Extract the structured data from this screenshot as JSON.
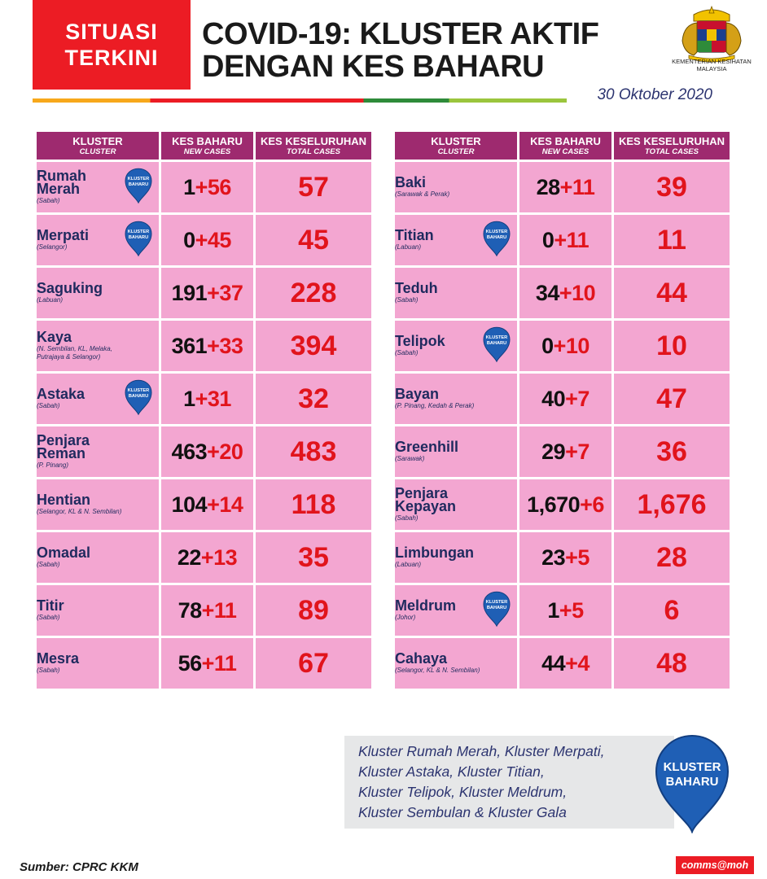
{
  "header": {
    "badge_line1": "SITUASI",
    "badge_line2": "TERKINI",
    "title_line1": "COVID-19: KLUSTER AKTIF",
    "title_line2": "DENGAN KES BAHARU",
    "ministry_line1": "KEMENTERIAN KESIHATAN",
    "ministry_line2": "MALAYSIA",
    "date": "30 Oktober 2020"
  },
  "columns": {
    "cluster": "KLUSTER",
    "cluster_sub": "CLUSTER",
    "new": "KES BAHARU",
    "new_sub": "NEW CASES",
    "total": "KES KESELURUHAN",
    "total_sub": "TOTAL CASES"
  },
  "pin": {
    "line1": "KLUSTER",
    "line2": "BAHARU"
  },
  "left_rows": [
    {
      "name": "Rumah Merah",
      "location": "(Sabah)",
      "prior": "1",
      "plus": "+56",
      "total": "57",
      "new_cluster": true
    },
    {
      "name": "Merpati",
      "location": "(Selangor)",
      "prior": "0",
      "plus": "+45",
      "total": "45",
      "new_cluster": true
    },
    {
      "name": "Saguking",
      "location": "(Labuan)",
      "prior": "191",
      "plus": "+37",
      "total": "228",
      "new_cluster": false
    },
    {
      "name": "Kaya",
      "location": "(N. Sembilan, KL, Melaka, Putrajaya & Selangor)",
      "prior": "361",
      "plus": "+33",
      "total": "394",
      "new_cluster": false
    },
    {
      "name": "Astaka",
      "location": "(Sabah)",
      "prior": "1",
      "plus": "+31",
      "total": "32",
      "new_cluster": true
    },
    {
      "name": "Penjara Reman",
      "location": "(P. Pinang)",
      "prior": "463",
      "plus": "+20",
      "total": "483",
      "new_cluster": false
    },
    {
      "name": "Hentian",
      "location": "(Selangor, KL & N. Sembilan)",
      "prior": "104",
      "plus": "+14",
      "total": "118",
      "new_cluster": false
    },
    {
      "name": "Omadal",
      "location": "(Sabah)",
      "prior": "22",
      "plus": "+13",
      "total": "35",
      "new_cluster": false
    },
    {
      "name": "Titir",
      "location": "(Sabah)",
      "prior": "78",
      "plus": "+11",
      "total": "89",
      "new_cluster": false
    },
    {
      "name": "Mesra",
      "location": "(Sabah)",
      "prior": "56",
      "plus": "+11",
      "total": "67",
      "new_cluster": false
    }
  ],
  "right_rows": [
    {
      "name": "Baki",
      "location": "(Sarawak & Perak)",
      "prior": "28",
      "plus": "+11",
      "total": "39",
      "new_cluster": false
    },
    {
      "name": "Titian",
      "location": "(Labuan)",
      "prior": "0",
      "plus": "+11",
      "total": "11",
      "new_cluster": true
    },
    {
      "name": "Teduh",
      "location": "(Sabah)",
      "prior": "34",
      "plus": "+10",
      "total": "44",
      "new_cluster": false
    },
    {
      "name": "Telipok",
      "location": "(Sabah)",
      "prior": "0",
      "plus": "+10",
      "total": "10",
      "new_cluster": true
    },
    {
      "name": "Bayan",
      "location": "(P. Pinang, Kedah & Perak)",
      "prior": "40",
      "plus": "+7",
      "total": "47",
      "new_cluster": false
    },
    {
      "name": "Greenhill",
      "location": "(Sarawak)",
      "prior": "29",
      "plus": "+7",
      "total": "36",
      "new_cluster": false
    },
    {
      "name": "Penjara Kepayan",
      "location": "(Sabah)",
      "prior": "1,670",
      "plus": "+6",
      "total": "1,676",
      "new_cluster": false
    },
    {
      "name": "Limbungan",
      "location": "(Labuan)",
      "prior": "23",
      "plus": "+5",
      "total": "28",
      "new_cluster": false
    },
    {
      "name": "Meldrum",
      "location": "(Johor)",
      "prior": "1",
      "plus": "+5",
      "total": "6",
      "new_cluster": true
    },
    {
      "name": "Cahaya",
      "location": "(Selangor, KL & N. Sembilan)",
      "prior": "44",
      "plus": "+4",
      "total": "48",
      "new_cluster": false
    }
  ],
  "note": {
    "line1": "Kluster Rumah Merah, Kluster Merpati,",
    "line2": "Kluster Astaka, Kluster Titian,",
    "line3": "Kluster Telipok, Kluster Meldrum,",
    "line4": "Kluster Sembulan & Kluster Gala",
    "pin_line1": "KLUSTER",
    "pin_line2": "BAHARU"
  },
  "footer": {
    "source": "Sumber: CPRC KKM",
    "brand": "comms@moh"
  },
  "colors": {
    "header_bg": "#9e2a6f",
    "row_bg": "#f3a6d1",
    "accent_red": "#e1141c",
    "navy": "#1f2a5e"
  }
}
